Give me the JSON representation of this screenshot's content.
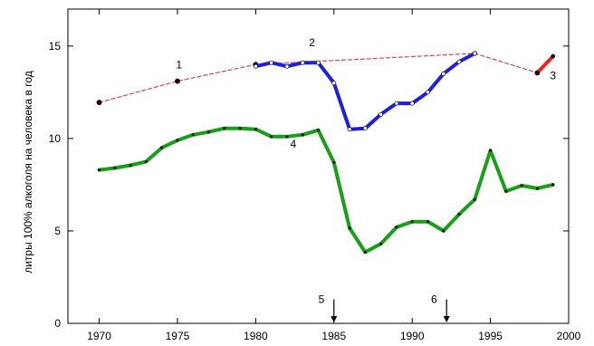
{
  "chart_data": {
    "type": "line",
    "xlim": [
      1968,
      2000
    ],
    "ylim": [
      0,
      17
    ],
    "xticks": [
      1970,
      1975,
      1980,
      1985,
      1990,
      1995,
      2000
    ],
    "yticks": [
      0,
      5,
      10,
      15
    ],
    "ylabel": "литры 100% алкоголя на человека в год",
    "grid": false,
    "series": [
      {
        "id": "1",
        "color": "#e04050",
        "style": "dashed",
        "x": [
          1970,
          1975,
          1980,
          1994,
          1998
        ],
        "y": [
          11.95,
          13.1,
          14.0,
          14.6,
          13.55
        ]
      },
      {
        "id": "2",
        "color": "#1f1fe0",
        "style": "solid",
        "x": [
          1980,
          1981,
          1982,
          1983,
          1984,
          1985,
          1986,
          1987,
          1988,
          1989,
          1990,
          1991,
          1992,
          1993,
          1994
        ],
        "y": [
          13.9,
          14.1,
          13.9,
          14.1,
          14.1,
          13.0,
          10.5,
          10.55,
          11.3,
          11.9,
          11.9,
          12.5,
          13.5,
          14.15,
          14.6
        ]
      },
      {
        "id": "3",
        "color": "#ee2020",
        "style": "solid",
        "x": [
          1998,
          1999
        ],
        "y": [
          13.55,
          14.45
        ]
      },
      {
        "id": "4",
        "color": "#16a016",
        "style": "solid",
        "x": [
          1970,
          1971,
          1972,
          1973,
          1974,
          1975,
          1976,
          1977,
          1978,
          1979,
          1980,
          1981,
          1982,
          1983,
          1984,
          1985,
          1986,
          1987,
          1988,
          1989,
          1990,
          1991,
          1992,
          1993,
          1994,
          1995,
          1996,
          1997,
          1998,
          1999
        ],
        "y": [
          8.3,
          8.4,
          8.55,
          8.75,
          9.5,
          9.9,
          10.2,
          10.35,
          10.55,
          10.55,
          10.5,
          10.1,
          10.1,
          10.2,
          10.45,
          8.7,
          5.15,
          3.85,
          4.3,
          5.2,
          5.5,
          5.5,
          5.0,
          5.9,
          6.7,
          9.35,
          7.15,
          7.45,
          7.3,
          7.5
        ]
      }
    ],
    "annotations": [
      {
        "text": "1",
        "series": "1",
        "x": 1975.1,
        "y": 13.8
      },
      {
        "text": "2",
        "series": "2",
        "x": 1983.6,
        "y": 15.0
      },
      {
        "text": "3",
        "series": "3",
        "x": 1999.0,
        "y": 13.2
      },
      {
        "text": "4",
        "series": "4",
        "x": 1982.4,
        "y": 9.5
      },
      {
        "text": "5",
        "x": 1985,
        "label_x": 1984.2,
        "label_y": 1.1,
        "arrow_from": 1.3,
        "arrow_to": 0.0
      },
      {
        "text": "6",
        "x": 1992.2,
        "label_x": 1991.4,
        "label_y": 1.1,
        "arrow_from": 1.3,
        "arrow_to": 0.0
      }
    ]
  }
}
